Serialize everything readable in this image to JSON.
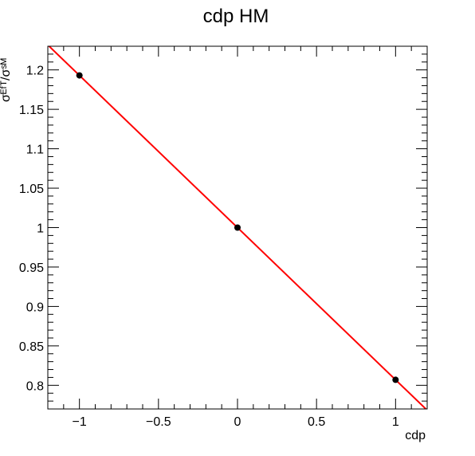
{
  "chart_data": {
    "type": "scatter",
    "title": "cdp HM",
    "xlabel": "cdp",
    "ylabel": "σᴱᶠᵀ/σˢᴹ",
    "xlim": [
      -1.2,
      1.2
    ],
    "ylim": [
      0.77,
      1.23
    ],
    "x_ticks": [
      -1,
      -0.5,
      0,
      0.5,
      1
    ],
    "x_tick_labels": [
      "−1",
      "−0.5",
      "0",
      "0.5",
      "1"
    ],
    "y_ticks": [
      0.8,
      0.85,
      0.9,
      0.95,
      1,
      1.05,
      1.1,
      1.15,
      1.2
    ],
    "y_tick_labels": [
      "0.8",
      "0.85",
      "0.9",
      "0.95",
      "1",
      "1.05",
      "1.1",
      "1.15",
      "1.2"
    ],
    "grid": false,
    "series": [
      {
        "kind": "points",
        "x": [
          -1,
          0,
          1
        ],
        "y": [
          1.193,
          1.0,
          0.807
        ],
        "color": "#000000"
      },
      {
        "kind": "fit-line",
        "x": [
          -1.2,
          1.2
        ],
        "y": [
          1.2316,
          0.7684
        ],
        "color": "#ff0000"
      }
    ]
  }
}
